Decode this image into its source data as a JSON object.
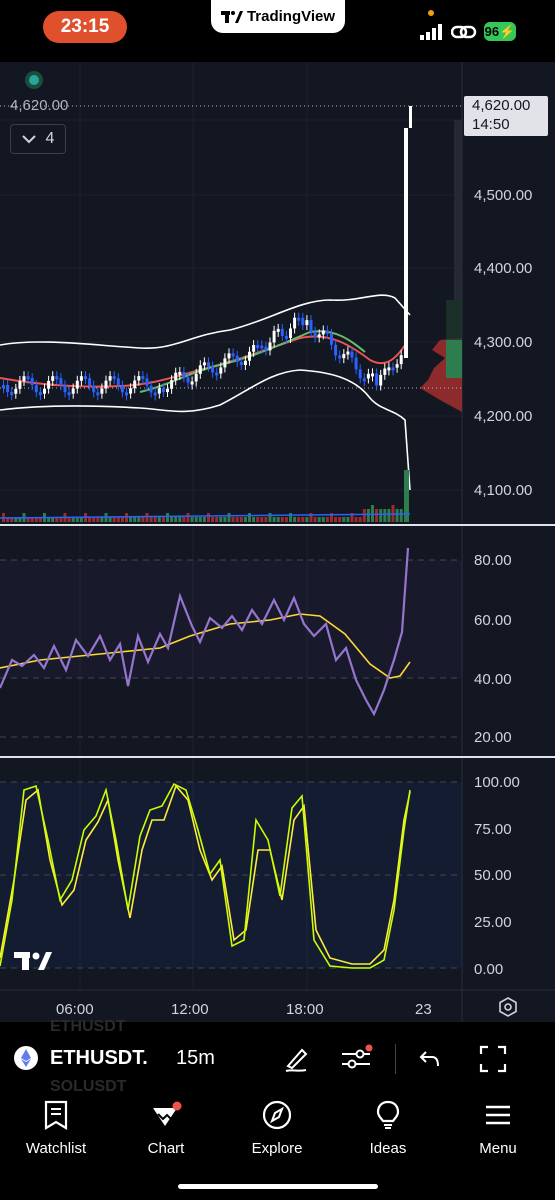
{
  "status": {
    "time": "23:15",
    "brand": "TradingView",
    "battery": "96"
  },
  "chart": {
    "current_price_left": "4,620.00",
    "collapse_count": "4",
    "price_tag": "4,620.00",
    "countdown": "14:50",
    "price_axis": [
      "4,500.00",
      "4,400.00",
      "4,300.00",
      "4,200.00",
      "4,100.00"
    ],
    "rsi_axis": [
      "80.00",
      "60.00",
      "40.00",
      "20.00"
    ],
    "stoch_axis": [
      "100.00",
      "75.00",
      "50.00",
      "25.00",
      "0.00"
    ],
    "time_axis": [
      "06:00",
      "12:00",
      "18:00",
      "23"
    ],
    "colors": {
      "up": "#ffffff",
      "down": "#2962ff",
      "rsi": "#7e57c2",
      "rsi_ma": "#fdd835",
      "stoch_k": "#c6ff00",
      "stoch_d": "#ffeb3b",
      "bb": "#ffffff",
      "ema": "#ef5350",
      "ema2": "#66bb6a"
    }
  },
  "toolbar": {
    "ghost_top": "ETHUSDT",
    "symbol": "ETHUSDT.",
    "ghost_bottom": "SOLUSDT",
    "interval": "15m"
  },
  "nav": {
    "watchlist": "Watchlist",
    "chart": "Chart",
    "explore": "Explore",
    "ideas": "Ideas",
    "menu": "Menu"
  }
}
